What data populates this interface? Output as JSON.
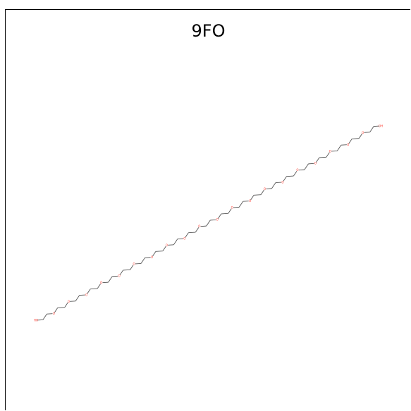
{
  "title": "9FO",
  "colors": {
    "bond": "#555555",
    "oxygen": "#ff3b30",
    "border": "#000000",
    "background": "#ffffff"
  },
  "molecule": {
    "start_label": "HO",
    "end_label": "OH",
    "ether_label": "O",
    "ether_oxygen_count": 20
  }
}
